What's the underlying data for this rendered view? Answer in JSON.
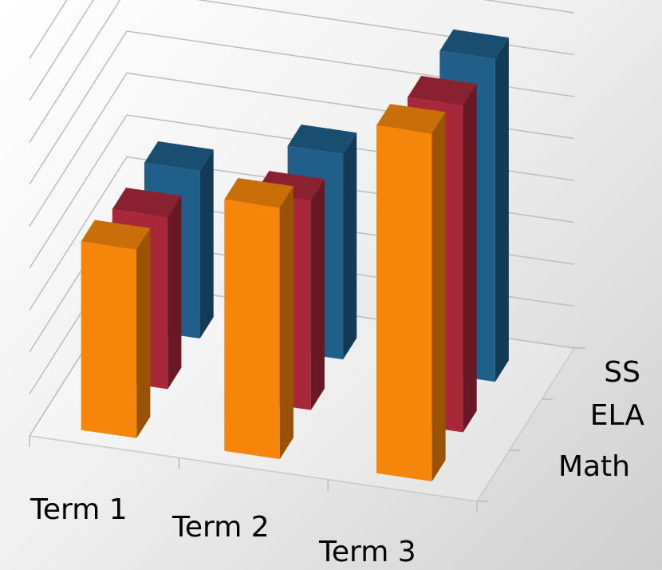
{
  "chart_data": {
    "type": "bar",
    "categories": [
      "Term 1",
      "Term 2",
      "Term 3"
    ],
    "series": [
      {
        "name": "Math",
        "values": [
          45,
          60,
          83
        ],
        "color": "#F5860A"
      },
      {
        "name": "ELA",
        "values": [
          41,
          50,
          78
        ],
        "color": "#A8283A"
      },
      {
        "name": "SS",
        "values": [
          40,
          49,
          77
        ],
        "color": "#1F5F8A"
      }
    ],
    "ylim": [
      0,
      90
    ],
    "grid": true,
    "legend": "none",
    "title": "",
    "xlabel": "",
    "ylabel": ""
  }
}
